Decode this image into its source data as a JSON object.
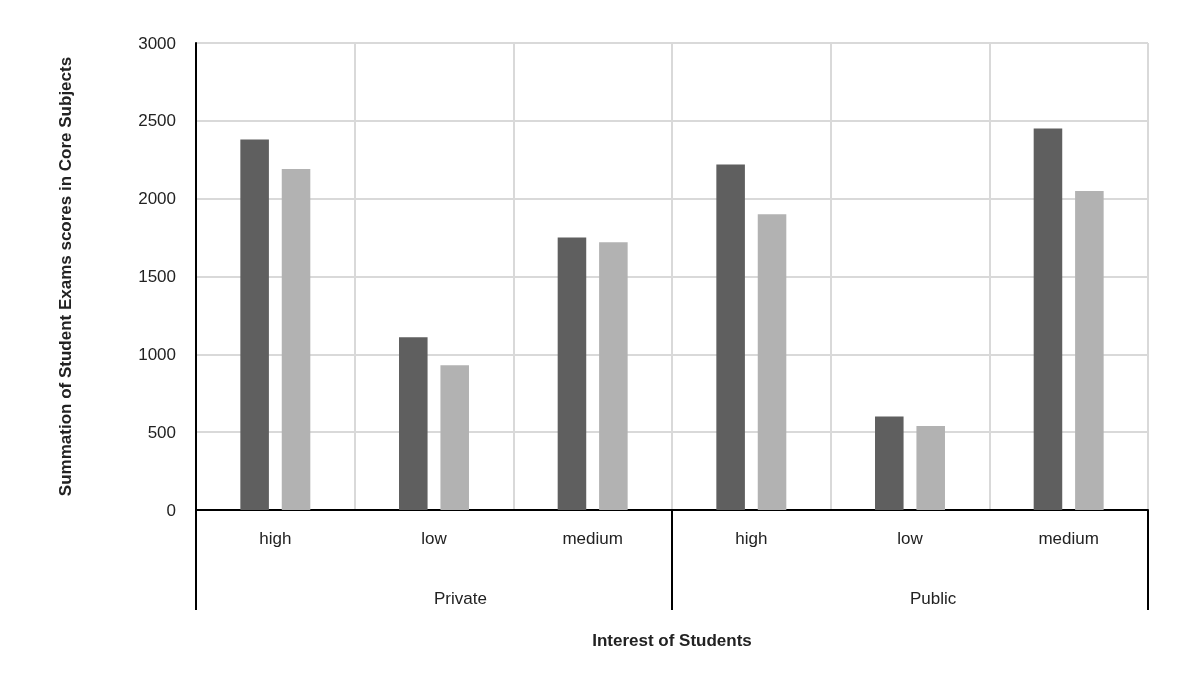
{
  "chart_data": {
    "type": "bar",
    "categories": [
      "high",
      "low",
      "medium",
      "high",
      "low",
      "medium"
    ],
    "series": [
      {
        "color": "#5f5f5f",
        "values": [
          2380,
          1110,
          1750,
          2220,
          600,
          2450
        ]
      },
      {
        "color": "#b2b2b2",
        "values": [
          2190,
          930,
          1720,
          1900,
          540,
          2050
        ]
      }
    ],
    "xlabel": "Interest of Students",
    "ylabel": "Summation of Student Exams scores in Core Subjects",
    "annotations": [
      "Private",
      "Public"
    ],
    "ylim": [
      0,
      3000
    ],
    "yticks": [
      0,
      500,
      1000,
      1500,
      2000,
      2500,
      3000
    ],
    "grid": true
  }
}
